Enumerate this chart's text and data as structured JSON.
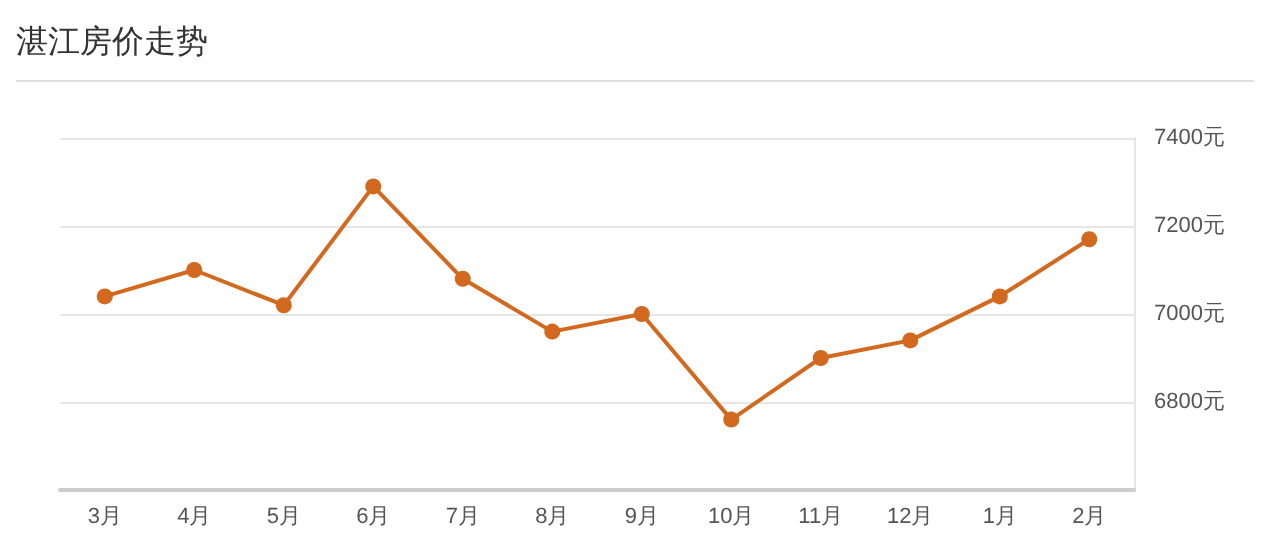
{
  "chart_data": {
    "type": "line",
    "title": "湛江房价走势",
    "categories": [
      "3月",
      "4月",
      "5月",
      "6月",
      "7月",
      "8月",
      "9月",
      "10月",
      "11月",
      "12月",
      "1月",
      "2月"
    ],
    "series": [
      {
        "color": "#d2691e",
        "values": [
          7040,
          7100,
          7020,
          7290,
          7080,
          6960,
          7000,
          6760,
          6900,
          6940,
          7040,
          7170
        ]
      }
    ],
    "ylim": [
      6600,
      7400
    ],
    "yticks": [
      {
        "value": 6800,
        "label": "6800元"
      },
      {
        "value": 7000,
        "label": "7000元"
      },
      {
        "value": 7200,
        "label": "7200元"
      },
      {
        "value": 7400,
        "label": "7400元"
      }
    ],
    "grid": "y",
    "marker": "circle"
  }
}
